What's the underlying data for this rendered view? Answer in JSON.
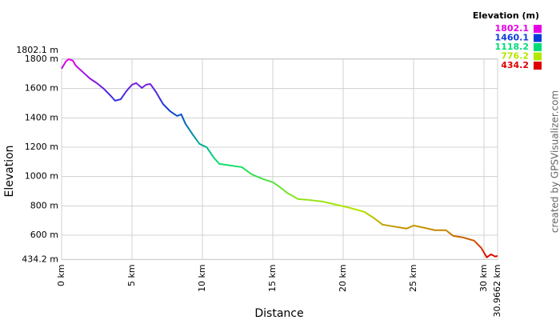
{
  "chart_data": {
    "type": "line",
    "y_label": "Elevation",
    "x_label": "Distance",
    "legend_title": "Elevation (m)",
    "credit": "created by GPSVisualizer.com",
    "color_scale": [
      {
        "value": 1802.1,
        "color": "#e600e6"
      },
      {
        "value": 1460.1,
        "color": "#0a3cdc"
      },
      {
        "value": 1118.2,
        "color": "#00dc78"
      },
      {
        "value": 776.2,
        "color": "#b4e600"
      },
      {
        "value": 434.2,
        "color": "#dc0000"
      }
    ],
    "xlim": [
      0,
      30.9662
    ],
    "ylim": [
      434.2,
      1802.1
    ],
    "xticks": [
      {
        "value": 0,
        "label": "0 km"
      },
      {
        "value": 5,
        "label": "5 km"
      },
      {
        "value": 10,
        "label": "10 km"
      },
      {
        "value": 15,
        "label": "15 km"
      },
      {
        "value": 20,
        "label": "20 km"
      },
      {
        "value": 25,
        "label": "25 km"
      },
      {
        "value": 30,
        "label": "30 km"
      },
      {
        "value": 30.9662,
        "label": "30.9662 km"
      }
    ],
    "yticks": [
      {
        "value": 434.2,
        "label": "434.2 m"
      },
      {
        "value": 600,
        "label": "600 m"
      },
      {
        "value": 800,
        "label": "800 m"
      },
      {
        "value": 1000,
        "label": "1000 m"
      },
      {
        "value": 1200,
        "label": "1200 m"
      },
      {
        "value": 1400,
        "label": "1400 m"
      },
      {
        "value": 1600,
        "label": "1600 m"
      },
      {
        "value": 1800,
        "label": "1800 m"
      },
      {
        "value": 1802.1,
        "label": "1802.1 m"
      }
    ],
    "grid": true,
    "x": [
      0,
      0.3,
      0.5,
      0.8,
      1.0,
      1.5,
      2.0,
      2.5,
      3.0,
      3.5,
      3.8,
      4.2,
      4.6,
      5.0,
      5.3,
      5.7,
      6.0,
      6.3,
      6.7,
      7.2,
      7.7,
      8.2,
      8.5,
      8.8,
      9.3,
      9.8,
      10.3,
      10.8,
      11.2,
      12.0,
      12.8,
      13.5,
      14.3,
      15.0,
      15.5,
      16.0,
      16.8,
      17.5,
      18.5,
      19.5,
      20.5,
      21.5,
      22.2,
      22.8,
      23.5,
      24.5,
      25.0,
      25.8,
      26.5,
      27.3,
      27.8,
      28.5,
      29.3,
      29.8,
      30.2,
      30.5,
      30.8,
      30.9662
    ],
    "series": [
      {
        "name": "Elevation",
        "values": [
          1735,
          1784,
          1800,
          1790,
          1757,
          1713,
          1669,
          1637,
          1598,
          1549,
          1517,
          1527,
          1582,
          1626,
          1637,
          1604,
          1626,
          1631,
          1577,
          1495,
          1446,
          1413,
          1424,
          1359,
          1288,
          1222,
          1200,
          1130,
          1086,
          1075,
          1064,
          1015,
          983,
          961,
          928,
          890,
          846,
          841,
          830,
          808,
          786,
          759,
          716,
          672,
          661,
          645,
          666,
          650,
          634,
          634,
          596,
          585,
          563,
          514,
          449,
          470,
          454,
          459
        ]
      }
    ]
  }
}
